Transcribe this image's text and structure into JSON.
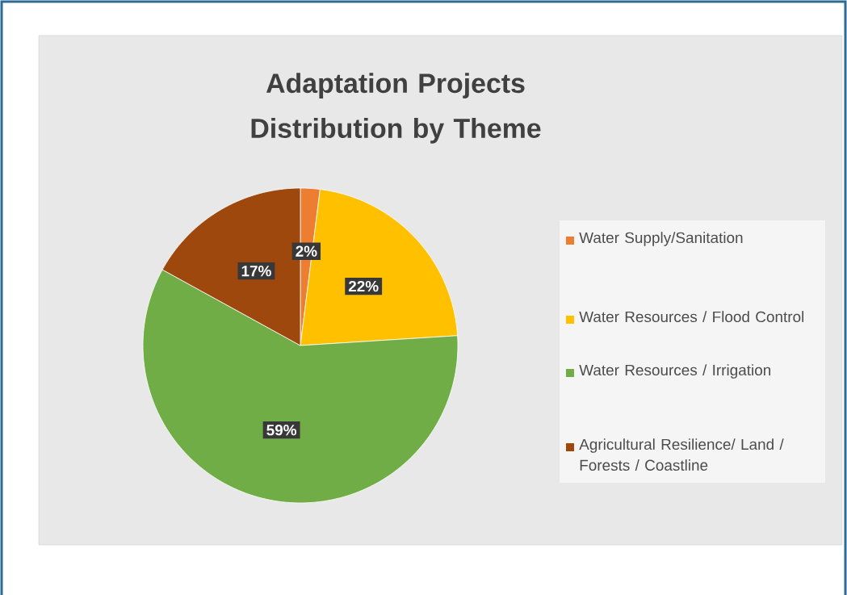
{
  "chart_data": {
    "type": "pie",
    "title": "Adaptation Projects Distribution by Theme",
    "categories": [
      "Water Supply/Sanitation",
      "Water Resources / Flood Control",
      "Water Resources / Irrigation",
      "Agricultural Resilience/ Land / Forests / Coastline"
    ],
    "values": [
      2,
      22,
      59,
      17
    ],
    "value_labels": [
      "2%",
      "22%",
      "59%",
      "17%"
    ],
    "colors": [
      "#ed7d31",
      "#ffc000",
      "#70ad47",
      "#9e480e"
    ],
    "legend": "right"
  }
}
